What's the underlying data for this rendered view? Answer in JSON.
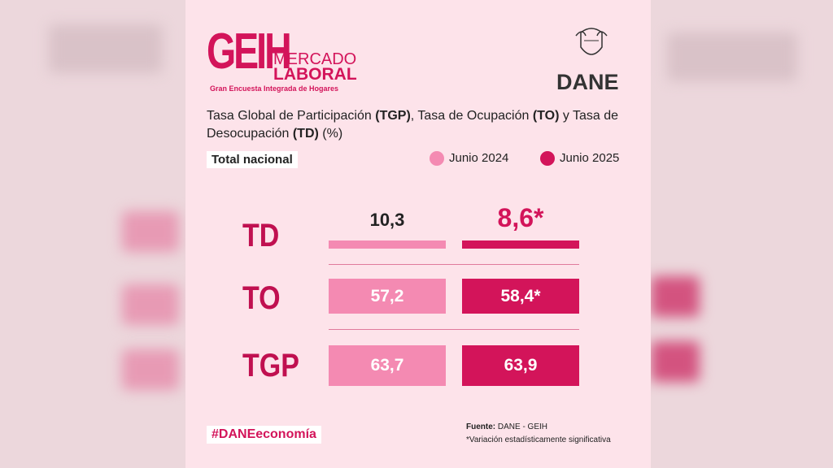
{
  "header": {
    "logo": {
      "main": "GEIH",
      "line1": "MERCADO",
      "line2": "LABORAL",
      "subtitle": "Gran Encuesta Integrada de Hogares"
    },
    "agency": "DANE"
  },
  "title": [
    "Tasa Global de Participación ",
    "(TGP)",
    ", Tasa de Ocupación ",
    "(TO)",
    " y Tasa de Desocupación ",
    "(TD)",
    " (%)"
  ],
  "scope": "Total nacional",
  "legend": [
    {
      "name": "Junio 2024",
      "color": "#f48ab2"
    },
    {
      "name": "Junio 2025",
      "color": "#d3145a"
    }
  ],
  "rows": [
    {
      "label": "TD",
      "values": [
        "10,3",
        "8,6*"
      ]
    },
    {
      "label": "TO",
      "values": [
        "57,2",
        "58,4*"
      ]
    },
    {
      "label": "TGP",
      "values": [
        "63,7",
        "63,9"
      ]
    }
  ],
  "footer": {
    "hashtag": "#DANEeconomía",
    "source_label": "Fuente:",
    "source": "DANE - GEIH",
    "note": "*Variación estadísticamente significativa"
  }
}
